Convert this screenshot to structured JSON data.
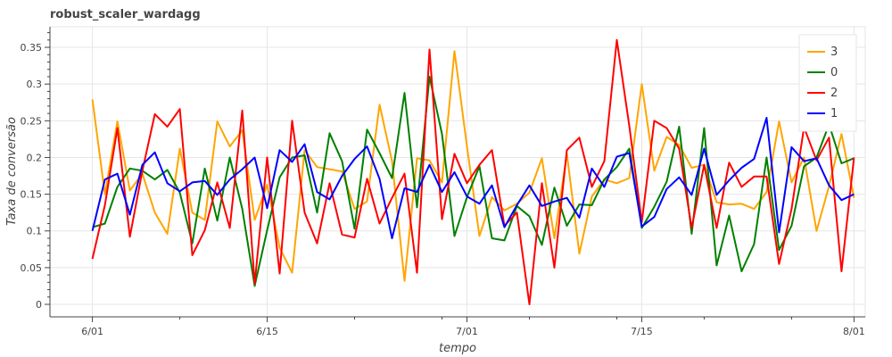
{
  "chart_data": {
    "type": "line",
    "title": "robust_scaler_wardagg",
    "xlabel": "tempo",
    "ylabel": "Taxa de conversão",
    "x_start": "2021-06-01",
    "x_tick_labels": [
      "6/01",
      "6/15",
      "7/01",
      "7/15",
      "8/01"
    ],
    "x_tick_days": [
      0,
      14,
      30,
      44,
      61
    ],
    "xlim_days": [
      -3.4,
      61.9
    ],
    "y_ticks": [
      0,
      0.05,
      0.1,
      0.15,
      0.2,
      0.25,
      0.3,
      0.35
    ],
    "y_tick_labels": [
      "0",
      "0.05",
      "0.1",
      "0.15",
      "0.2",
      "0.25",
      "0.3",
      "0.35"
    ],
    "ylim": [
      -0.017,
      0.378
    ],
    "grid": true,
    "legend_position": "top-right",
    "series": [
      {
        "name": "3",
        "color": "#FFA500",
        "values": [
          0.279,
          0.15,
          0.249,
          0.155,
          0.178,
          0.125,
          0.096,
          0.212,
          0.125,
          0.115,
          0.249,
          0.215,
          0.237,
          0.115,
          0.163,
          0.077,
          0.043,
          0.21,
          0.187,
          0.184,
          0.181,
          0.13,
          0.14,
          0.272,
          0.195,
          0.032,
          0.199,
          0.196,
          0.166,
          0.345,
          0.215,
          0.093,
          0.146,
          0.128,
          0.137,
          0.152,
          0.199,
          0.09,
          0.205,
          0.069,
          0.147,
          0.17,
          0.165,
          0.172,
          0.3,
          0.182,
          0.228,
          0.217,
          0.186,
          0.19,
          0.139,
          0.136,
          0.137,
          0.13,
          0.153,
          0.249,
          0.166,
          0.2,
          0.1,
          0.161,
          0.232,
          0.145
        ]
      },
      {
        "name": "0",
        "color": "#008000",
        "values": [
          0.105,
          0.11,
          0.16,
          0.185,
          0.182,
          0.17,
          0.183,
          0.152,
          0.083,
          0.185,
          0.114,
          0.2,
          0.13,
          0.025,
          0.101,
          0.173,
          0.2,
          0.203,
          0.125,
          0.233,
          0.195,
          0.103,
          0.238,
          0.206,
          0.172,
          0.288,
          0.132,
          0.31,
          0.232,
          0.093,
          0.146,
          0.188,
          0.09,
          0.087,
          0.134,
          0.12,
          0.081,
          0.159,
          0.107,
          0.136,
          0.135,
          0.17,
          0.187,
          0.212,
          0.104,
          0.133,
          0.167,
          0.242,
          0.096,
          0.24,
          0.053,
          0.121,
          0.045,
          0.082,
          0.2,
          0.074,
          0.107,
          0.188,
          0.2,
          0.245,
          0.192,
          0.199
        ]
      },
      {
        "name": "2",
        "color": "#FF0000",
        "values": [
          0.062,
          0.135,
          0.24,
          0.092,
          0.182,
          0.259,
          0.242,
          0.266,
          0.067,
          0.101,
          0.166,
          0.104,
          0.264,
          0.028,
          0.2,
          0.042,
          0.25,
          0.125,
          0.083,
          0.165,
          0.095,
          0.091,
          0.171,
          0.11,
          0.145,
          0.178,
          0.043,
          0.347,
          0.116,
          0.205,
          0.165,
          0.19,
          0.21,
          0.107,
          0.125,
          0.0,
          0.165,
          0.05,
          0.21,
          0.227,
          0.16,
          0.195,
          0.36,
          0.243,
          0.112,
          0.25,
          0.24,
          0.212,
          0.104,
          0.19,
          0.104,
          0.193,
          0.16,
          0.174,
          0.174,
          0.055,
          0.13,
          0.241,
          0.196,
          0.227,
          0.045,
          0.2
        ]
      },
      {
        "name": "1",
        "color": "#0000FF",
        "values": [
          0.1,
          0.17,
          0.178,
          0.122,
          0.19,
          0.207,
          0.165,
          0.154,
          0.166,
          0.168,
          0.149,
          0.17,
          0.184,
          0.2,
          0.131,
          0.21,
          0.194,
          0.218,
          0.153,
          0.143,
          0.175,
          0.198,
          0.215,
          0.171,
          0.09,
          0.158,
          0.153,
          0.19,
          0.153,
          0.18,
          0.147,
          0.137,
          0.162,
          0.105,
          0.135,
          0.162,
          0.134,
          0.14,
          0.145,
          0.118,
          0.185,
          0.16,
          0.201,
          0.206,
          0.106,
          0.119,
          0.157,
          0.173,
          0.149,
          0.212,
          0.149,
          0.169,
          0.186,
          0.198,
          0.254,
          0.098,
          0.214,
          0.195,
          0.199,
          0.162,
          0.142,
          0.15
        ]
      }
    ]
  }
}
